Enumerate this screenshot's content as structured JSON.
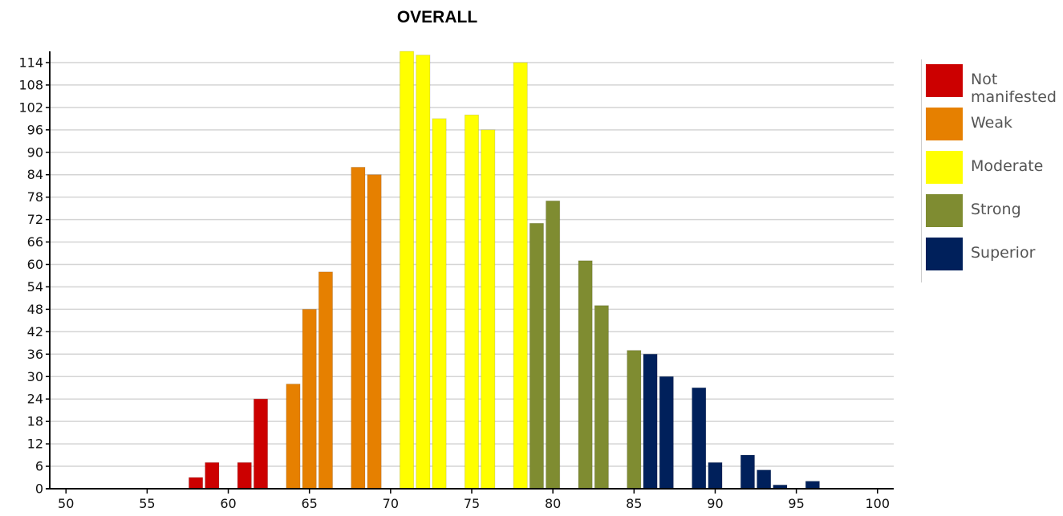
{
  "chart_data": {
    "type": "bar",
    "title": "OVERALL",
    "xlabel": "",
    "ylabel": "",
    "xlim": [
      49,
      101
    ],
    "ylim": [
      0,
      117
    ],
    "x_ticks": [
      50,
      55,
      60,
      65,
      70,
      75,
      80,
      85,
      90,
      95,
      100
    ],
    "y_ticks": [
      0,
      6,
      12,
      18,
      24,
      30,
      36,
      42,
      48,
      54,
      60,
      66,
      72,
      78,
      84,
      90,
      96,
      102,
      108,
      114
    ],
    "grid": true,
    "legend_position": "right",
    "categories_colors": {
      "Not manifested": "#cc0000",
      "Weak": "#e68000",
      "Moderate": "#ffff00",
      "Strong": "#7f8c31",
      "Superior": "#00205b"
    },
    "series": [
      {
        "name": "Not manifested",
        "color": "#cc0000",
        "x": [
          58,
          59,
          61,
          62
        ],
        "values": [
          3,
          7,
          7,
          24
        ]
      },
      {
        "name": "Weak",
        "color": "#e68000",
        "x": [
          64,
          65,
          66,
          68,
          69
        ],
        "values": [
          28,
          48,
          58,
          86,
          84
        ]
      },
      {
        "name": "Moderate",
        "color": "#ffff00",
        "x": [
          71,
          72,
          73,
          75,
          76,
          78
        ],
        "values": [
          117,
          116,
          99,
          100,
          96,
          114
        ]
      },
      {
        "name": "Strong",
        "color": "#7f8c31",
        "x": [
          79,
          80,
          82,
          83,
          85
        ],
        "values": [
          71,
          77,
          61,
          49,
          37
        ]
      },
      {
        "name": "Superior",
        "color": "#00205b",
        "x": [
          86,
          87,
          89,
          90,
          92,
          93,
          94,
          96
        ],
        "values": [
          36,
          30,
          27,
          7,
          9,
          5,
          1,
          2
        ]
      }
    ]
  }
}
